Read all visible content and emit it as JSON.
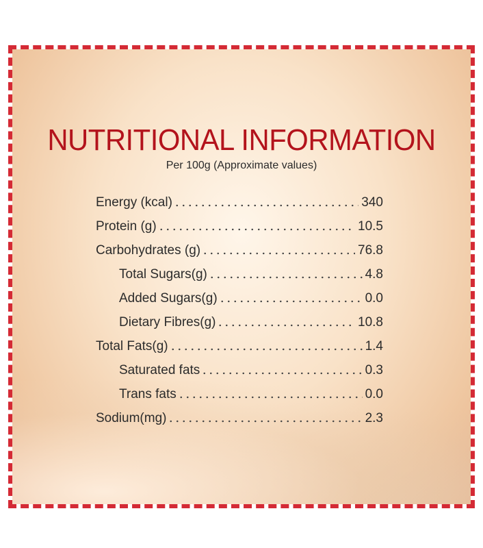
{
  "header": {
    "title": "NUTRITIONAL INFORMATION",
    "subtitle": "Per 100g (Approximate values)"
  },
  "rows": [
    {
      "label": "Energy (kcal)",
      "value": "340"
    },
    {
      "label": "Protein (g)",
      "value": "10.5"
    },
    {
      "label": "Carbohydrates (g)",
      "value": "76.8",
      "items": [
        {
          "label": "Total Sugars(g)",
          "value": "4.8"
        },
        {
          "label": "Added Sugars(g)",
          "value": "0.0"
        },
        {
          "label": "Dietary Fibres(g)",
          "value": "10.8"
        }
      ]
    },
    {
      "label": "Total Fats(g)",
      "value": "1.4",
      "items": [
        {
          "label": "Saturated fats",
          "value": "0.3"
        },
        {
          "label": "Trans fats",
          "value": "0.0"
        }
      ]
    },
    {
      "label": "Sodium(mg)",
      "value": "2.3"
    }
  ]
}
